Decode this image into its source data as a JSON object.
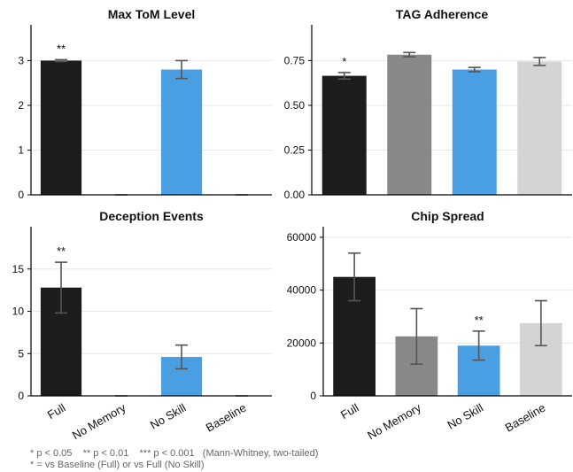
{
  "chart_data": [
    {
      "type": "bar",
      "title": "Max ToM Level",
      "categories": [
        "Full",
        "No Memory",
        "No Skill",
        "Baseline"
      ],
      "values": [
        3.0,
        0,
        2.8,
        0
      ],
      "errors": [
        0.02,
        0,
        0.2,
        0
      ],
      "annotations": [
        "**",
        "",
        "",
        ""
      ],
      "yticks": [
        "0",
        "1",
        "2",
        "3"
      ],
      "ylim": [
        0,
        3.8
      ],
      "grid": true,
      "show_xlabels": false
    },
    {
      "type": "bar",
      "title": "TAG Adherence",
      "categories": [
        "Full",
        "No Memory",
        "No Skill",
        "Baseline"
      ],
      "values": [
        0.665,
        0.783,
        0.7,
        0.745
      ],
      "errors": [
        0.018,
        0.012,
        0.012,
        0.022
      ],
      "annotations": [
        "*",
        "",
        "",
        ""
      ],
      "yticks": [
        "0.00",
        "0.25",
        "0.50",
        "0.75"
      ],
      "ylim": [
        0,
        0.95
      ],
      "grid": true,
      "show_xlabels": false
    },
    {
      "type": "bar",
      "title": "Deception Events",
      "categories": [
        "Full",
        "No Memory",
        "No Skill",
        "Baseline"
      ],
      "values": [
        12.8,
        0,
        4.6,
        0
      ],
      "errors": [
        3.0,
        0,
        1.4,
        0
      ],
      "annotations": [
        "**",
        "",
        "",
        ""
      ],
      "yticks": [
        "0",
        "5",
        "10",
        "15"
      ],
      "ylim": [
        0,
        20
      ],
      "grid": true,
      "show_xlabels": true
    },
    {
      "type": "bar",
      "title": "Chip Spread",
      "categories": [
        "Full",
        "No Memory",
        "No Skill",
        "Baseline"
      ],
      "values": [
        45000,
        22500,
        19000,
        27500
      ],
      "errors": [
        9000,
        10500,
        5500,
        8500
      ],
      "annotations": [
        "",
        "",
        "**",
        ""
      ],
      "yticks": [
        "0",
        "20000",
        "40000",
        "60000"
      ],
      "ylim": [
        0,
        64000
      ],
      "grid": true,
      "show_xlabels": true
    }
  ],
  "colors": {
    "Full": "#1c1c1c",
    "No Memory": "#888888",
    "No Skill": "#4a9fe3",
    "Baseline": "#d4d4d4",
    "error_bar": "#555555",
    "grid": "#e6e6e6",
    "axis": "#000000"
  },
  "footnote": {
    "line1": "* p < 0.05    ** p < 0.01    *** p < 0.001   (Mann-Whitney, two-tailed)",
    "line2": "* = vs Baseline (Full) or vs Full (No Skill)"
  }
}
